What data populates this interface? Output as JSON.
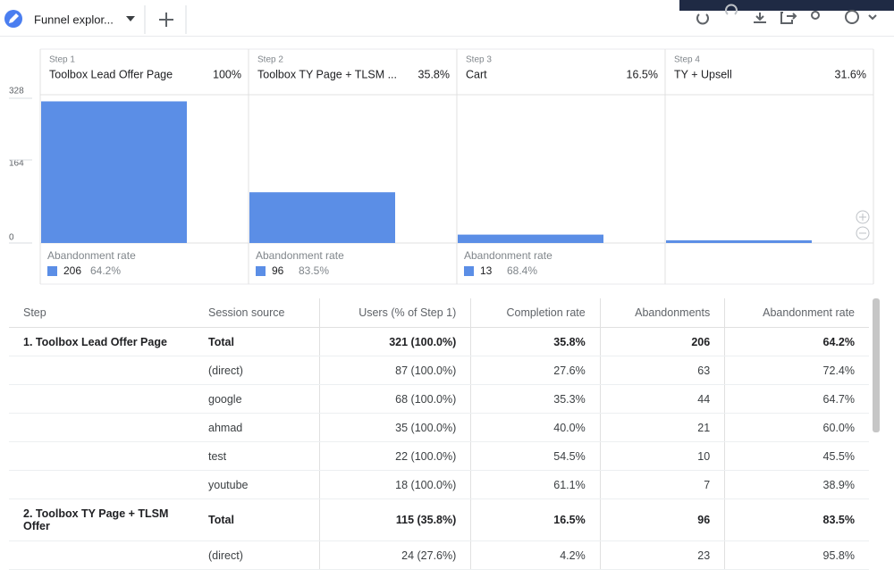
{
  "tab": {
    "title": "Funnel explor..."
  },
  "funnel": {
    "ylim": [
      0,
      328
    ],
    "yticks": [
      0,
      164,
      328
    ],
    "abandonment_label": "Abandonment rate",
    "steps": [
      {
        "label": "Step 1",
        "name": "Toolbox Lead Offer Page",
        "pct": "100%",
        "value": 321,
        "abandonments": 206,
        "abandonment_rate": "64.2%"
      },
      {
        "label": "Step 2",
        "name": "Toolbox TY Page + TLSM ...",
        "pct": "35.8%",
        "value": 115,
        "abandonments": 96,
        "abandonment_rate": "83.5%"
      },
      {
        "label": "Step 3",
        "name": "Cart",
        "pct": "16.5%",
        "value": 19,
        "abandonments": 13,
        "abandonment_rate": "68.4%"
      },
      {
        "label": "Step 4",
        "name": "TY + Upsell",
        "pct": "31.6%",
        "value": 6
      }
    ]
  },
  "table": {
    "headers": [
      "Step",
      "Session source",
      "Users (% of Step 1)",
      "Completion rate",
      "Abandonments",
      "Abandonment rate"
    ],
    "rows": [
      [
        "1. Toolbox Lead Offer Page",
        "Total",
        "321 (100.0%)",
        "35.8%",
        "206",
        "64.2%"
      ],
      [
        null,
        "(direct)",
        "87 (100.0%)",
        "27.6%",
        "63",
        "72.4%"
      ],
      [
        null,
        "google",
        "68 (100.0%)",
        "35.3%",
        "44",
        "64.7%"
      ],
      [
        null,
        "ahmad",
        "35 (100.0%)",
        "40.0%",
        "21",
        "60.0%"
      ],
      [
        null,
        "test",
        "22 (100.0%)",
        "54.5%",
        "10",
        "45.5%"
      ],
      [
        null,
        "youtube",
        "18 (100.0%)",
        "61.1%",
        "7",
        "38.9%"
      ],
      [
        "2. Toolbox TY Page + TLSM Offer",
        "Total",
        "115 (35.8%)",
        "16.5%",
        "96",
        "83.5%"
      ],
      [
        null,
        "(direct)",
        "24 (27.6%)",
        "4.2%",
        "23",
        "95.8%"
      ]
    ]
  }
}
